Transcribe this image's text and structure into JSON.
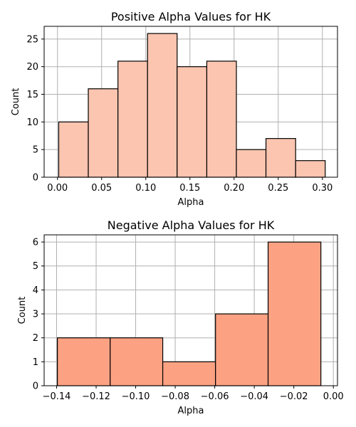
{
  "chart_data": [
    {
      "type": "bar",
      "title": "Positive Alpha Values for HK",
      "xlabel": "Alpha",
      "ylabel": "Count",
      "bar_color": "#fcc5b0",
      "grid": true,
      "xlim": [
        -0.0151,
        0.3171
      ],
      "ylim": [
        0,
        27.3
      ],
      "xticks": [
        0.0,
        0.05,
        0.1,
        0.15,
        0.2,
        0.25,
        0.3
      ],
      "xtick_labels": [
        "0.00",
        "0.05",
        "0.10",
        "0.15",
        "0.20",
        "0.25",
        "0.30"
      ],
      "yticks": [
        0,
        5,
        10,
        15,
        20,
        25
      ],
      "ytick_labels": [
        "0",
        "5",
        "10",
        "15",
        "20",
        "25"
      ],
      "bins": [
        {
          "x0": 0.0014,
          "x1": 0.0349,
          "count": 10
        },
        {
          "x0": 0.0349,
          "x1": 0.0685,
          "count": 16
        },
        {
          "x0": 0.0685,
          "x1": 0.102,
          "count": 21
        },
        {
          "x0": 0.102,
          "x1": 0.1355,
          "count": 26
        },
        {
          "x0": 0.1355,
          "x1": 0.1691,
          "count": 20
        },
        {
          "x0": 0.1691,
          "x1": 0.2026,
          "count": 21
        },
        {
          "x0": 0.2026,
          "x1": 0.2361,
          "count": 5
        },
        {
          "x0": 0.2361,
          "x1": 0.2697,
          "count": 7
        },
        {
          "x0": 0.2697,
          "x1": 0.3032,
          "count": 3
        }
      ]
    },
    {
      "type": "bar",
      "title": "Negative Alpha Values for HK",
      "xlabel": "Alpha",
      "ylabel": "Count",
      "bar_color": "#fca283",
      "grid": true,
      "xlim": [
        -0.1463,
        0.0021
      ],
      "ylim": [
        0,
        6.3
      ],
      "xticks": [
        -0.14,
        -0.12,
        -0.1,
        -0.08,
        -0.06,
        -0.04,
        -0.02,
        0.0
      ],
      "xtick_labels": [
        "−0.14",
        "−0.12",
        "−0.10",
        "−0.08",
        "−0.06",
        "−0.04",
        "−0.02",
        "0.00"
      ],
      "yticks": [
        0,
        1,
        2,
        3,
        4,
        5,
        6
      ],
      "ytick_labels": [
        "0",
        "1",
        "2",
        "3",
        "4",
        "5",
        "6"
      ],
      "bins": [
        {
          "x0": -0.1396,
          "x1": -0.1129,
          "count": 2
        },
        {
          "x0": -0.1129,
          "x1": -0.0863,
          "count": 2
        },
        {
          "x0": -0.0863,
          "x1": -0.0596,
          "count": 1
        },
        {
          "x0": -0.0596,
          "x1": -0.033,
          "count": 3
        },
        {
          "x0": -0.033,
          "x1": -0.0063,
          "count": 6
        }
      ]
    }
  ]
}
